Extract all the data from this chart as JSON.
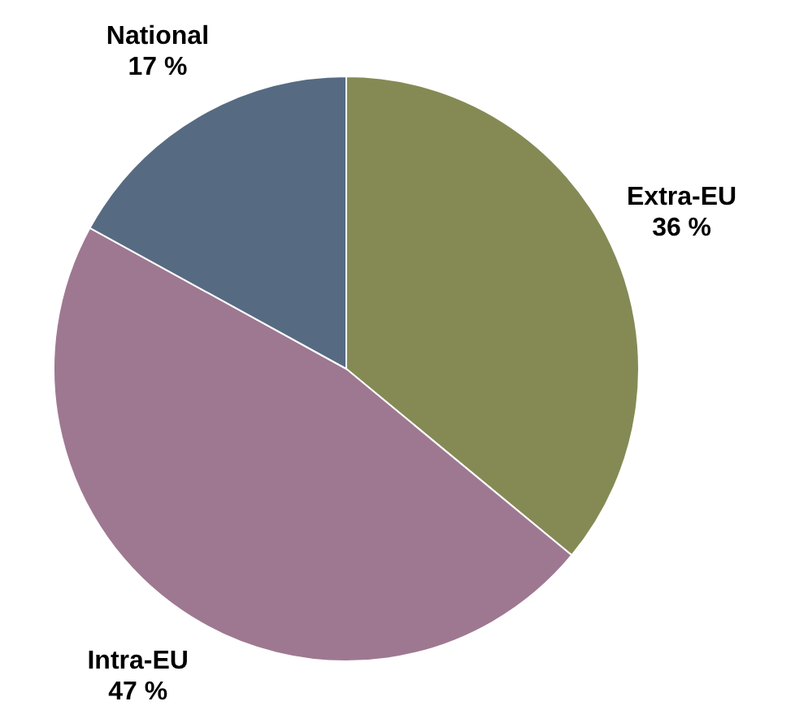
{
  "chart_data": {
    "type": "pie",
    "categories": [
      "Extra-EU",
      "Intra-EU",
      "National"
    ],
    "values": [
      36,
      47,
      17
    ],
    "colors": [
      "#858a55",
      "#9e7891",
      "#566b82"
    ],
    "value_labels": [
      "36 %",
      "47 %",
      "17 %"
    ]
  }
}
